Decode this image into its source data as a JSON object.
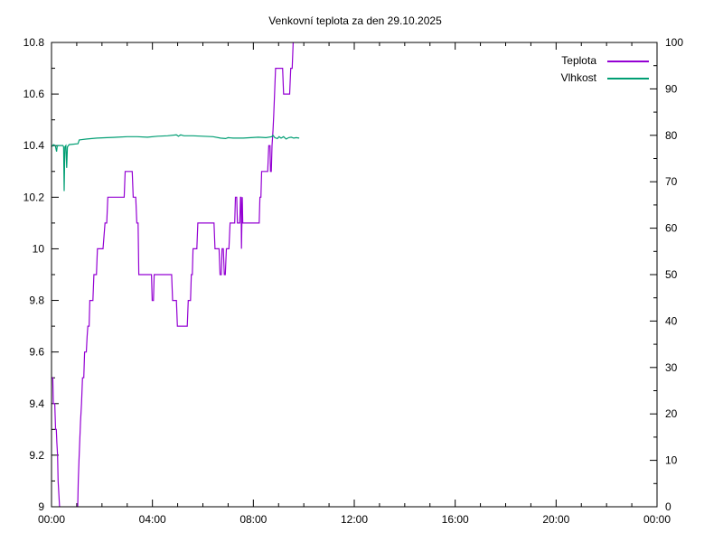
{
  "window": {
    "background": "#ffffff",
    "border_color": "#000000"
  },
  "chart_data": {
    "type": "line",
    "title": "Venkovní teplota za den 29.10.2025",
    "grid": false,
    "legend": {
      "position": "top-right",
      "entries": [
        {
          "label": "Teplota",
          "color": "#9400d3"
        },
        {
          "label": "Vlhkost",
          "color": "#009e73"
        }
      ]
    },
    "x_axis": {
      "range_hours": [
        0,
        24
      ],
      "minor_step_hours": 1,
      "major_ticks": [
        {
          "h": 0,
          "label": "00:00"
        },
        {
          "h": 4,
          "label": "04:00"
        },
        {
          "h": 8,
          "label": "08:00"
        },
        {
          "h": 12,
          "label": "12:00"
        },
        {
          "h": 16,
          "label": "16:00"
        },
        {
          "h": 20,
          "label": "20:00"
        },
        {
          "h": 24,
          "label": "00:00"
        }
      ]
    },
    "y_axis_left": {
      "range": [
        9,
        10.8
      ],
      "minor_step": 0.1,
      "major_ticks": [
        {
          "v": 9,
          "label": "9"
        },
        {
          "v": 9.2,
          "label": "9.2"
        },
        {
          "v": 9.4,
          "label": "9.4"
        },
        {
          "v": 9.6,
          "label": "9.6"
        },
        {
          "v": 9.8,
          "label": "9.8"
        },
        {
          "v": 10,
          "label": "10"
        },
        {
          "v": 10.2,
          "label": "10.2"
        },
        {
          "v": 10.4,
          "label": "10.4"
        },
        {
          "v": 10.6,
          "label": "10.6"
        },
        {
          "v": 10.8,
          "label": "10.8"
        }
      ]
    },
    "y_axis_right": {
      "range": [
        0,
        100
      ],
      "minor_step": 5,
      "major_ticks": [
        {
          "v": 0,
          "label": "0"
        },
        {
          "v": 10,
          "label": "10"
        },
        {
          "v": 20,
          "label": "20"
        },
        {
          "v": 30,
          "label": "30"
        },
        {
          "v": 40,
          "label": "40"
        },
        {
          "v": 50,
          "label": "50"
        },
        {
          "v": 60,
          "label": "60"
        },
        {
          "v": 70,
          "label": "70"
        },
        {
          "v": 80,
          "label": "80"
        },
        {
          "v": 90,
          "label": "90"
        },
        {
          "v": 100,
          "label": "100"
        }
      ]
    },
    "series": [
      {
        "name": "Teplota",
        "color": "#9400d3",
        "axis": "left",
        "points": [
          [
            0.0,
            9.5
          ],
          [
            0.05,
            9.5
          ],
          [
            0.07,
            9.4
          ],
          [
            0.13,
            9.4
          ],
          [
            0.16,
            9.3
          ],
          [
            0.19,
            9.3
          ],
          [
            0.21,
            9.25
          ],
          [
            0.24,
            9.2
          ],
          [
            0.26,
            9.1
          ],
          [
            0.29,
            9.05
          ],
          [
            0.32,
            9.0
          ],
          [
            0.36,
            8.92
          ],
          [
            1.02,
            8.92
          ],
          [
            1.06,
            9.1
          ],
          [
            1.09,
            9.18
          ],
          [
            1.12,
            9.26
          ],
          [
            1.15,
            9.33
          ],
          [
            1.19,
            9.4
          ],
          [
            1.23,
            9.5
          ],
          [
            1.28,
            9.5
          ],
          [
            1.31,
            9.6
          ],
          [
            1.38,
            9.6
          ],
          [
            1.41,
            9.66
          ],
          [
            1.44,
            9.7
          ],
          [
            1.49,
            9.7
          ],
          [
            1.52,
            9.8
          ],
          [
            1.64,
            9.8
          ],
          [
            1.68,
            9.9
          ],
          [
            1.78,
            9.9
          ],
          [
            1.82,
            10.0
          ],
          [
            2.04,
            10.0
          ],
          [
            2.08,
            10.05
          ],
          [
            2.12,
            10.1
          ],
          [
            2.19,
            10.1
          ],
          [
            2.23,
            10.2
          ],
          [
            2.88,
            10.2
          ],
          [
            2.92,
            10.3
          ],
          [
            3.2,
            10.3
          ],
          [
            3.24,
            10.2
          ],
          [
            3.34,
            10.2
          ],
          [
            3.38,
            10.1
          ],
          [
            3.43,
            10.1
          ],
          [
            3.46,
            9.9
          ],
          [
            3.96,
            9.9
          ],
          [
            3.99,
            9.8
          ],
          [
            4.04,
            9.8
          ],
          [
            4.07,
            9.9
          ],
          [
            4.76,
            9.9
          ],
          [
            4.8,
            9.8
          ],
          [
            4.95,
            9.8
          ],
          [
            4.99,
            9.7
          ],
          [
            5.38,
            9.7
          ],
          [
            5.42,
            9.8
          ],
          [
            5.51,
            9.8
          ],
          [
            5.54,
            9.9
          ],
          [
            5.58,
            9.9
          ],
          [
            5.61,
            10.0
          ],
          [
            5.76,
            10.0
          ],
          [
            5.8,
            10.1
          ],
          [
            6.44,
            10.1
          ],
          [
            6.48,
            10.0
          ],
          [
            6.64,
            10.0
          ],
          [
            6.68,
            9.9
          ],
          [
            6.73,
            9.9
          ],
          [
            6.76,
            10.0
          ],
          [
            6.81,
            10.0
          ],
          [
            6.85,
            9.9
          ],
          [
            6.89,
            9.9
          ],
          [
            6.93,
            10.0
          ],
          [
            7.03,
            10.0
          ],
          [
            7.08,
            10.1
          ],
          [
            7.26,
            10.1
          ],
          [
            7.29,
            10.2
          ],
          [
            7.34,
            10.2
          ],
          [
            7.37,
            10.1
          ],
          [
            7.46,
            10.1
          ],
          [
            7.49,
            10.2
          ],
          [
            7.51,
            10.2
          ],
          [
            7.53,
            10.0
          ],
          [
            7.56,
            10.2
          ],
          [
            7.58,
            10.1
          ],
          [
            8.23,
            10.1
          ],
          [
            8.26,
            10.2
          ],
          [
            8.3,
            10.2
          ],
          [
            8.33,
            10.3
          ],
          [
            8.57,
            10.3
          ],
          [
            8.61,
            10.4
          ],
          [
            8.66,
            10.4
          ],
          [
            8.68,
            10.3
          ],
          [
            8.71,
            10.3
          ],
          [
            8.74,
            10.4
          ],
          [
            8.78,
            10.46
          ],
          [
            8.81,
            10.52
          ],
          [
            8.84,
            10.6
          ],
          [
            8.88,
            10.7
          ],
          [
            9.16,
            10.7
          ],
          [
            9.2,
            10.6
          ],
          [
            9.44,
            10.6
          ],
          [
            9.48,
            10.7
          ],
          [
            9.54,
            10.7
          ],
          [
            9.58,
            10.8
          ],
          [
            9.62,
            10.88
          ]
        ]
      },
      {
        "name": "Vlhkost",
        "color": "#009e73",
        "axis": "right",
        "points": [
          [
            0.0,
            77.5
          ],
          [
            0.08,
            78.0
          ],
          [
            0.15,
            77.8
          ],
          [
            0.2,
            76.5
          ],
          [
            0.23,
            77.8
          ],
          [
            0.45,
            77.8
          ],
          [
            0.48,
            77.5
          ],
          [
            0.5,
            68.0
          ],
          [
            0.53,
            77.5
          ],
          [
            0.57,
            77.8
          ],
          [
            0.6,
            73.0
          ],
          [
            0.63,
            77.5
          ],
          [
            0.7,
            78.0
          ],
          [
            1.05,
            78.2
          ],
          [
            1.1,
            79.0
          ],
          [
            1.4,
            79.2
          ],
          [
            1.8,
            79.4
          ],
          [
            2.2,
            79.5
          ],
          [
            2.6,
            79.6
          ],
          [
            3.0,
            79.7
          ],
          [
            3.4,
            79.7
          ],
          [
            3.8,
            79.6
          ],
          [
            4.2,
            79.8
          ],
          [
            4.6,
            79.9
          ],
          [
            4.95,
            80.1
          ],
          [
            5.03,
            79.8
          ],
          [
            5.12,
            80.1
          ],
          [
            5.25,
            79.9
          ],
          [
            5.6,
            79.9
          ],
          [
            6.0,
            79.8
          ],
          [
            6.4,
            79.7
          ],
          [
            6.7,
            79.4
          ],
          [
            6.9,
            79.3
          ],
          [
            7.0,
            79.5
          ],
          [
            7.2,
            79.4
          ],
          [
            7.6,
            79.4
          ],
          [
            7.9,
            79.5
          ],
          [
            8.2,
            79.6
          ],
          [
            8.5,
            79.5
          ],
          [
            8.73,
            79.7
          ],
          [
            8.78,
            80.0
          ],
          [
            8.85,
            79.5
          ],
          [
            8.95,
            79.3
          ],
          [
            9.02,
            79.7
          ],
          [
            9.1,
            79.4
          ],
          [
            9.2,
            79.7
          ],
          [
            9.3,
            79.2
          ],
          [
            9.4,
            79.5
          ],
          [
            9.5,
            79.6
          ],
          [
            9.6,
            79.4
          ],
          [
            9.7,
            79.5
          ],
          [
            9.82,
            79.4
          ]
        ]
      }
    ]
  }
}
